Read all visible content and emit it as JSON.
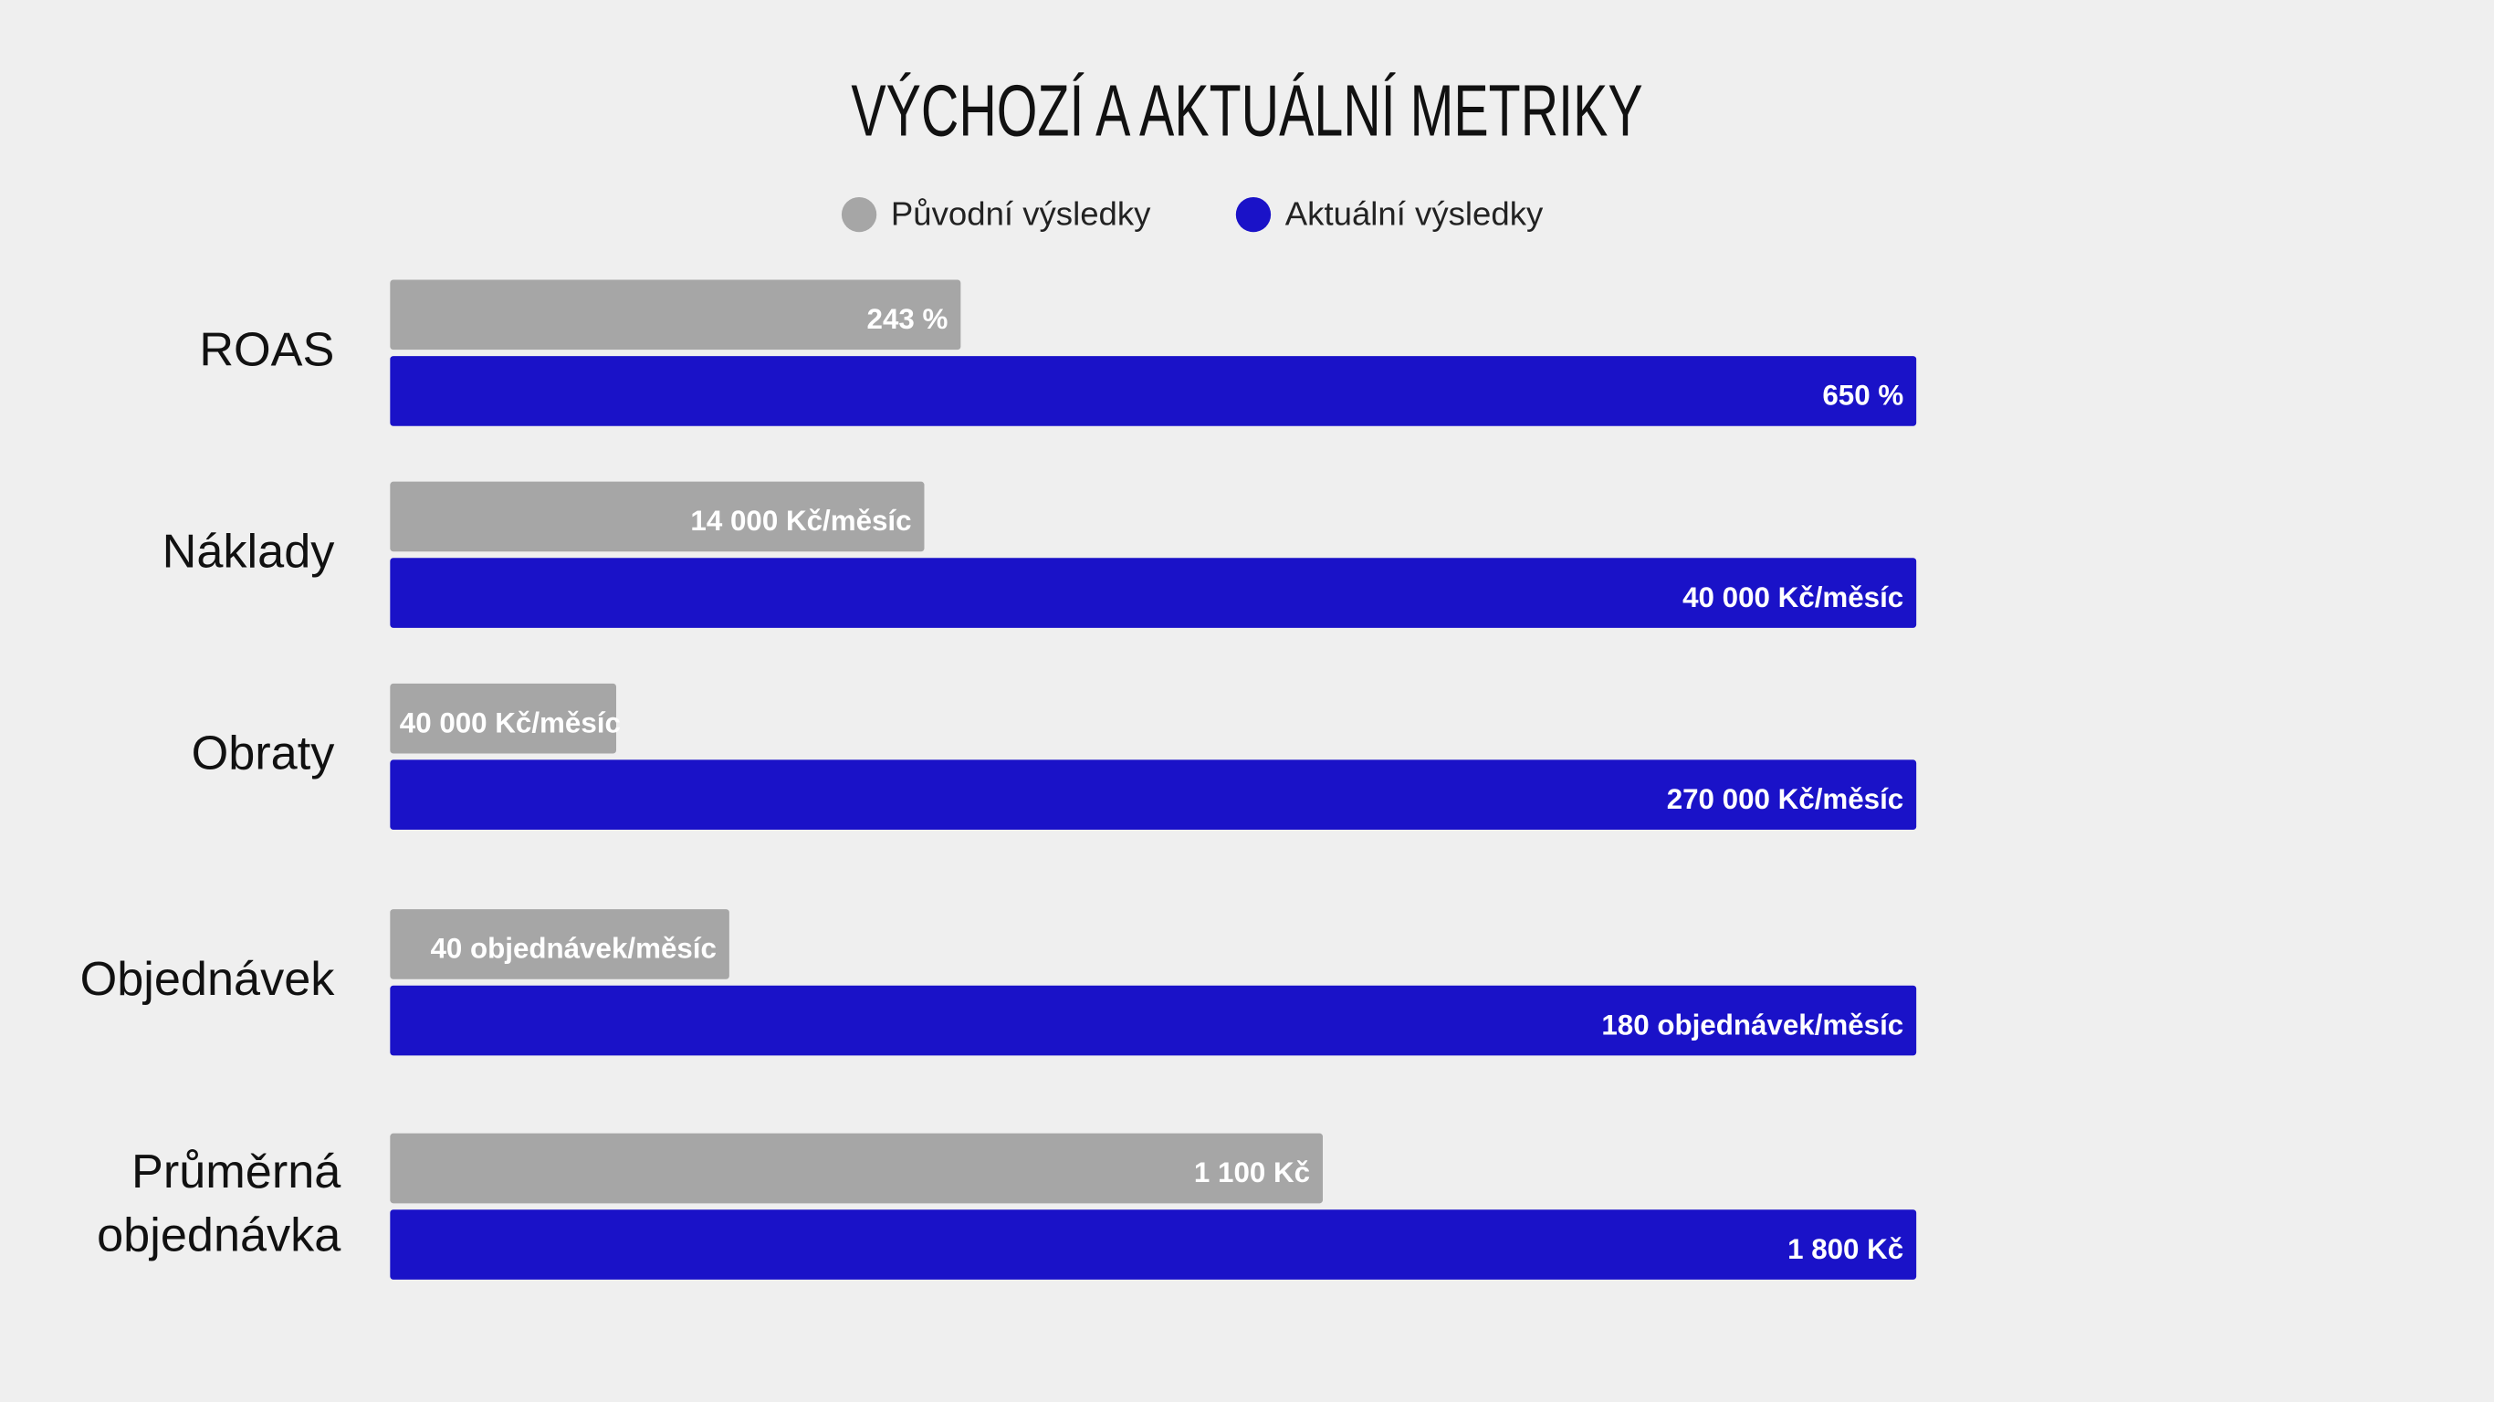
{
  "chart_data": {
    "type": "bar",
    "orientation": "horizontal",
    "title": "VÝCHOZÍ A AKTUÁLNÍ METRIKY",
    "categories": [
      "ROAS",
      "Náklady",
      "Obraty",
      "Objednávek",
      "Průměrná objednávka"
    ],
    "series": [
      {
        "name": "Původní výsledky",
        "color": "#a6a6a6",
        "values": [
          243,
          14000,
          40000,
          40,
          1100
        ],
        "value_labels": [
          "243 %",
          "14 000 Kč/měsíc",
          "40 000 Kč/měsíc",
          "40 objednávek/měsíc",
          "1 100 Kč"
        ]
      },
      {
        "name": "Aktuální výsledky",
        "color": "#1a12c8",
        "values": [
          650,
          40000,
          270000,
          180,
          1800
        ],
        "value_labels": [
          "650 %",
          "40 000 Kč/měsíc",
          "270 000 Kč/měsíc",
          "180 objednávek/měsíc",
          "1 800 Kč"
        ]
      }
    ]
  }
}
